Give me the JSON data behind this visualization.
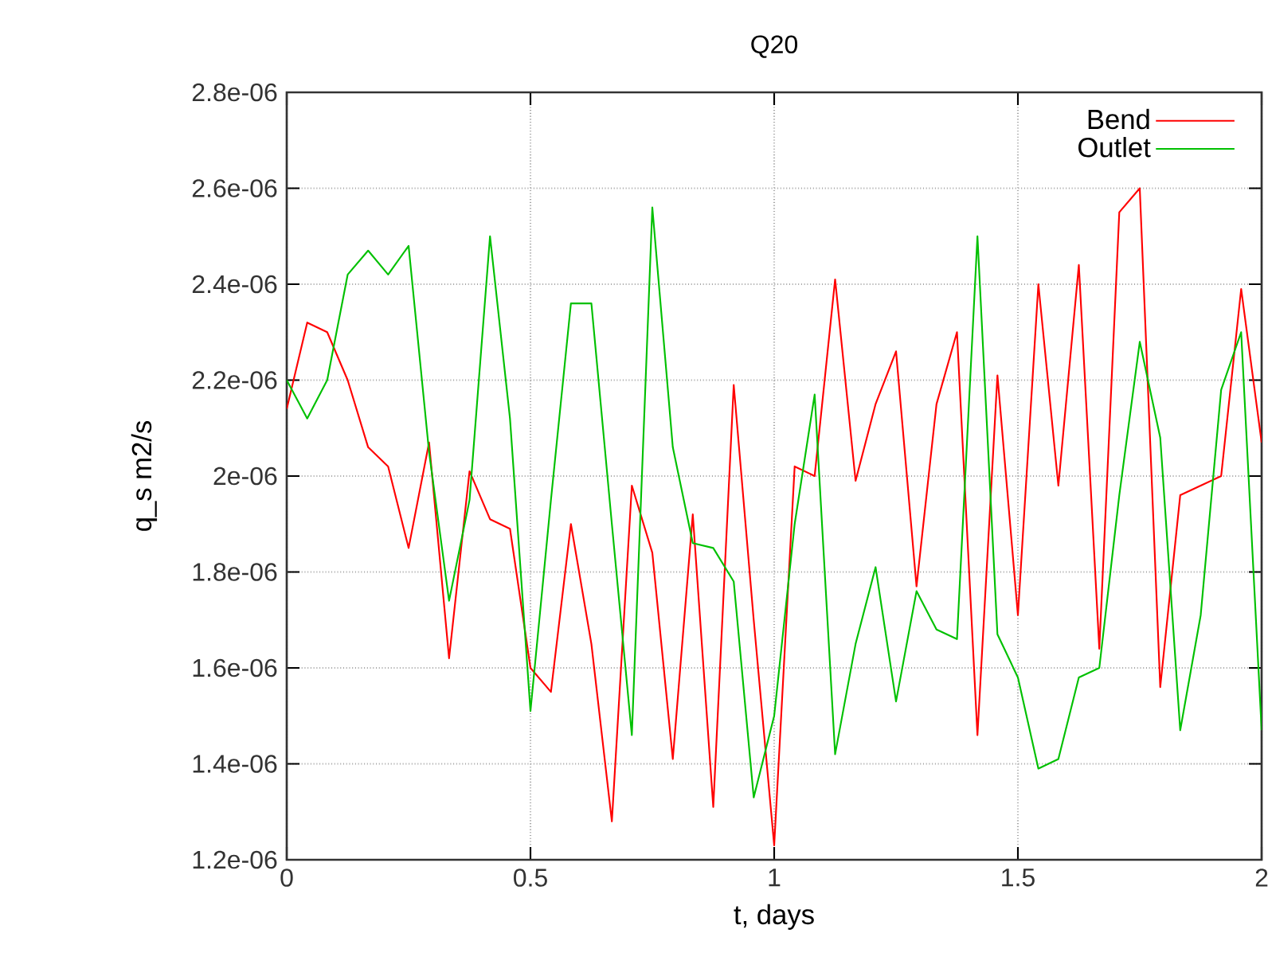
{
  "chart_data": {
    "type": "line",
    "title": "Q20",
    "xlabel": "t, days",
    "ylabel": "q_s m2/s",
    "x": [
      0,
      0.042,
      0.083,
      0.125,
      0.167,
      0.208,
      0.25,
      0.292,
      0.333,
      0.375,
      0.417,
      0.458,
      0.5,
      0.542,
      0.583,
      0.625,
      0.667,
      0.708,
      0.75,
      0.792,
      0.833,
      0.875,
      0.917,
      0.958,
      1.0,
      1.042,
      1.083,
      1.125,
      1.167,
      1.208,
      1.25,
      1.292,
      1.333,
      1.375,
      1.417,
      1.458,
      1.5,
      1.542,
      1.583,
      1.625,
      1.667,
      1.708,
      1.75,
      1.792,
      1.833,
      1.875,
      1.917,
      1.958,
      2.0
    ],
    "series": [
      {
        "name": "Bend",
        "color": "#ff0000",
        "values": [
          2.14e-06,
          2.32e-06,
          2.3e-06,
          2.2e-06,
          2.06e-06,
          2.02e-06,
          1.85e-06,
          2.07e-06,
          1.62e-06,
          2.01e-06,
          1.91e-06,
          1.89e-06,
          1.6e-06,
          1.55e-06,
          1.9e-06,
          1.65e-06,
          1.28e-06,
          1.98e-06,
          1.84e-06,
          1.41e-06,
          1.92e-06,
          1.31e-06,
          2.19e-06,
          1.7e-06,
          1.23e-06,
          2.02e-06,
          2e-06,
          2.41e-06,
          1.99e-06,
          2.15e-06,
          2.26e-06,
          1.77e-06,
          2.15e-06,
          2.3e-06,
          1.46e-06,
          2.21e-06,
          1.71e-06,
          2.4e-06,
          1.98e-06,
          2.44e-06,
          1.64e-06,
          2.55e-06,
          2.6e-06,
          1.56e-06,
          1.96e-06,
          1.98e-06,
          2e-06,
          2.39e-06,
          2.07e-06
        ]
      },
      {
        "name": "Outlet",
        "color": "#00c000",
        "values": [
          2.2e-06,
          2.12e-06,
          2.2e-06,
          2.42e-06,
          2.47e-06,
          2.42e-06,
          2.48e-06,
          2.05e-06,
          1.74e-06,
          1.95e-06,
          2.5e-06,
          2.12e-06,
          1.51e-06,
          1.95e-06,
          2.36e-06,
          2.36e-06,
          1.9e-06,
          1.46e-06,
          2.56e-06,
          2.06e-06,
          1.86e-06,
          1.85e-06,
          1.78e-06,
          1.33e-06,
          1.5e-06,
          1.9e-06,
          2.17e-06,
          1.42e-06,
          1.65e-06,
          1.81e-06,
          1.53e-06,
          1.76e-06,
          1.68e-06,
          1.66e-06,
          2.5e-06,
          1.67e-06,
          1.58e-06,
          1.39e-06,
          1.41e-06,
          1.58e-06,
          1.6e-06,
          1.96e-06,
          2.28e-06,
          2.08e-06,
          1.47e-06,
          1.71e-06,
          2.18e-06,
          2.3e-06,
          1.47e-06
        ]
      }
    ],
    "xlim": [
      0,
      2
    ],
    "xticks": [
      0,
      0.5,
      1,
      1.5,
      2
    ],
    "ylim": [
      1.2e-06,
      2.8e-06
    ],
    "yticks": [
      {
        "value": 1.2e-06,
        "label": "1.2e-06"
      },
      {
        "value": 1.4e-06,
        "label": "1.4e-06"
      },
      {
        "value": 1.6e-06,
        "label": "1.6e-06"
      },
      {
        "value": 1.8e-06,
        "label": "1.8e-06"
      },
      {
        "value": 2e-06,
        "label": "2e-06"
      },
      {
        "value": 2.2e-06,
        "label": "2.2e-06"
      },
      {
        "value": 2.4e-06,
        "label": "2.4e-06"
      },
      {
        "value": 2.6e-06,
        "label": "2.6e-06"
      },
      {
        "value": 2.8e-06,
        "label": "2.8e-06"
      }
    ],
    "grid": true,
    "legend": "top right",
    "marker": "none",
    "line_style": "solid"
  }
}
